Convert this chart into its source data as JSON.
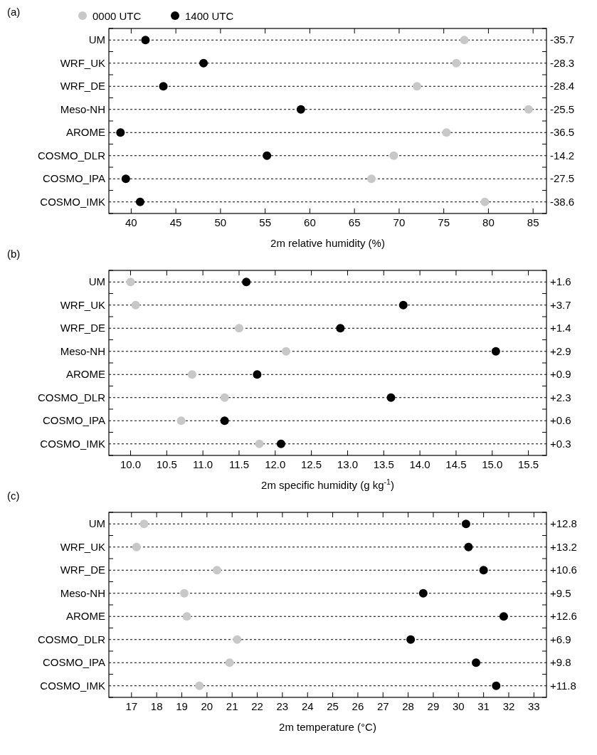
{
  "chart_data": [
    {
      "type": "scatter",
      "orientation": "horizontal",
      "title": "(a)",
      "xlabel": "2m relative humidity (%)",
      "categories": [
        "UM",
        "WRF_UK",
        "WRF_DE",
        "Meso-NH",
        "AROME",
        "COSMO_DLR",
        "COSMO_IPA",
        "COSMO_IMK"
      ],
      "series": [
        {
          "name": "0000 UTC",
          "color": "#c8c8c8",
          "values": [
            77.3,
            76.4,
            72.0,
            84.5,
            75.3,
            69.4,
            66.9,
            79.6
          ]
        },
        {
          "name": "1400 UTC",
          "color": "#000000",
          "values": [
            41.6,
            48.1,
            43.6,
            59.0,
            38.8,
            55.2,
            39.4,
            41.0
          ]
        }
      ],
      "xlim": [
        37.5,
        86.5
      ],
      "xticks": [
        40,
        45,
        50,
        55,
        60,
        65,
        70,
        75,
        80,
        85
      ],
      "grid": "y",
      "marker": "circle",
      "legend": "top left",
      "annotations": [
        "-35.7",
        "-28.3",
        "-28.4",
        "-25.5",
        "-36.5",
        "-14.2",
        "-27.5",
        "-38.6"
      ]
    },
    {
      "type": "scatter",
      "orientation": "horizontal",
      "title": "(b)",
      "xlabel": "2m specific humidity (g kg$^{-1}$)",
      "categories": [
        "UM",
        "WRF_UK",
        "WRF_DE",
        "Meso-NH",
        "AROME",
        "COSMO_DLR",
        "COSMO_IPA",
        "COSMO_IMK"
      ],
      "series": [
        {
          "color": "#c8c8c8",
          "values": [
            10.0,
            10.07,
            11.5,
            12.15,
            10.85,
            11.3,
            10.7,
            11.78
          ]
        },
        {
          "color": "#000000",
          "values": [
            11.6,
            13.77,
            12.9,
            15.05,
            11.75,
            13.6,
            11.3,
            12.08
          ]
        }
      ],
      "xlim": [
        9.7,
        15.75
      ],
      "xticks": [
        {
          "value": 10,
          "label": "10.0"
        },
        {
          "value": 10.5,
          "label": "10.5"
        },
        {
          "value": 11,
          "label": "11.0"
        },
        {
          "value": 11.5,
          "label": "11.5"
        },
        {
          "value": 12,
          "label": "12.0"
        },
        {
          "value": 12.5,
          "label": "12.5"
        },
        {
          "value": 13,
          "label": "13.0"
        },
        {
          "value": 13.5,
          "label": "13.5"
        },
        {
          "value": 14,
          "label": "14.0"
        },
        {
          "value": 14.5,
          "label": "14.5"
        },
        {
          "value": 15,
          "label": "15.0"
        },
        {
          "value": 15.5,
          "label": "15.5"
        }
      ],
      "grid": "y",
      "marker": "circle",
      "annotations": [
        "+1.6",
        "+3.7",
        "+1.4",
        "+2.9",
        "+0.9",
        "+2.3",
        "+0.6",
        "+0.3"
      ]
    },
    {
      "type": "scatter",
      "orientation": "horizontal",
      "title": "(c)",
      "xlabel": "2m temperature (°C)",
      "categories": [
        "UM",
        "WRF_UK",
        "WRF_DE",
        "Meso-NH",
        "AROME",
        "COSMO_DLR",
        "COSMO_IPA",
        "COSMO_IMK"
      ],
      "series": [
        {
          "color": "#c8c8c8",
          "values": [
            17.5,
            17.2,
            20.4,
            19.1,
            19.2,
            21.2,
            20.9,
            19.7
          ]
        },
        {
          "color": "#000000",
          "values": [
            30.3,
            30.4,
            31.0,
            28.6,
            31.8,
            28.1,
            30.7,
            31.5
          ]
        }
      ],
      "xlim": [
        16.1,
        33.5
      ],
      "xticks": [
        17,
        18,
        19,
        20,
        21,
        22,
        23,
        24,
        25,
        26,
        27,
        28,
        29,
        30,
        31,
        32,
        33
      ],
      "grid": "y",
      "marker": "circle",
      "annotations": [
        "+12.8",
        "+13.2",
        "+10.6",
        "+9.5",
        "+12.6",
        "+6.9",
        "+9.8",
        "+11.8"
      ]
    }
  ]
}
